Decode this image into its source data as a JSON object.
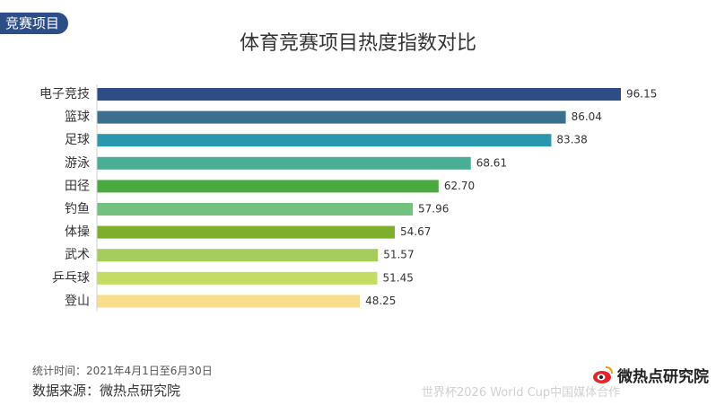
{
  "tag": "竞赛项目",
  "chart_data": {
    "type": "bar",
    "orientation": "horizontal",
    "title": "体育竞赛项目热度指数对比",
    "categories": [
      "电子竞技",
      "篮球",
      "足球",
      "游泳",
      "田径",
      "钓鱼",
      "体操",
      "武术",
      "乒乓球",
      "登山"
    ],
    "values": [
      96.15,
      86.04,
      83.38,
      68.61,
      62.7,
      57.96,
      54.67,
      51.57,
      51.45,
      48.25
    ],
    "value_labels": [
      "96.15",
      "86.04",
      "83.38",
      "68.61",
      "62.70",
      "57.96",
      "54.67",
      "51.57",
      "51.45",
      "48.25"
    ],
    "colors": [
      "#2d4d86",
      "#3c6f8e",
      "#2a97ad",
      "#4aae94",
      "#4aaa40",
      "#72c17e",
      "#7daf2c",
      "#a6cd5c",
      "#c3dd63",
      "#f9dd8b"
    ],
    "xlim": [
      0,
      96.15
    ],
    "grid": false,
    "legend": "none"
  },
  "footnote": "统计时间：2021年4月1日至6月30日",
  "source": "数据来源：微热点研究院",
  "logo": {
    "icon": "weibo-eye-icon",
    "text": "微热点研究院"
  },
  "watermark": "世界杯2026 World Cup中国媒体合作"
}
